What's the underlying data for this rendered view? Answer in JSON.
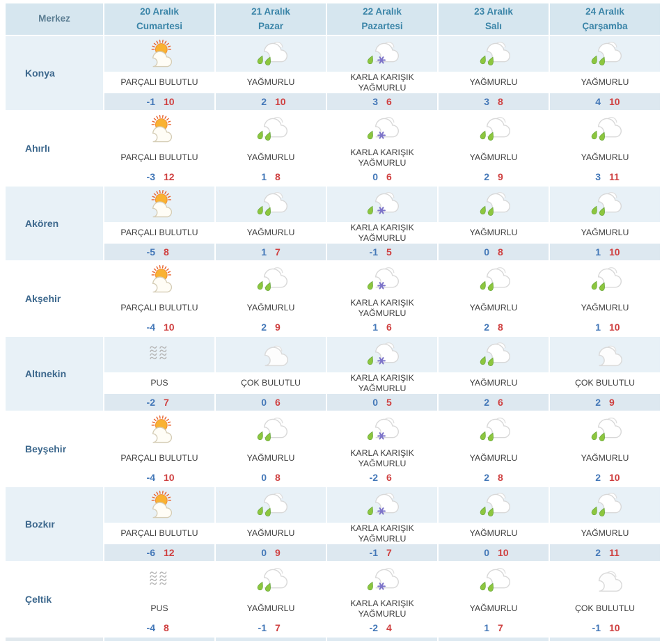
{
  "table": {
    "merkez_label": "Merkez",
    "day_columns": [
      {
        "date": "20 Aralık",
        "day": "Cumartesi"
      },
      {
        "date": "21 Aralık",
        "day": "Pazar"
      },
      {
        "date": "22 Aralık",
        "day": "Pazartesi"
      },
      {
        "date": "23 Aralık",
        "day": "Salı"
      },
      {
        "date": "24 Aralık",
        "day": "Çarşamba"
      }
    ],
    "rows": [
      {
        "name": "Konya",
        "cells": [
          {
            "icon": "partly-cloudy-icon",
            "condition": "PARÇALI BULUTLU",
            "min": "-1",
            "max": "10"
          },
          {
            "icon": "rain-icon",
            "condition": "YAĞMURLU",
            "min": "2",
            "max": "10"
          },
          {
            "icon": "sleet-icon",
            "condition": "KARLA KARIŞIK YAĞMURLU",
            "min": "3",
            "max": "6"
          },
          {
            "icon": "rain-icon",
            "condition": "YAĞMURLU",
            "min": "3",
            "max": "8"
          },
          {
            "icon": "rain-icon",
            "condition": "YAĞMURLU",
            "min": "4",
            "max": "10"
          }
        ]
      },
      {
        "name": "Ahırlı",
        "cells": [
          {
            "icon": "partly-cloudy-icon",
            "condition": "PARÇALI BULUTLU",
            "min": "-3",
            "max": "12"
          },
          {
            "icon": "rain-icon",
            "condition": "YAĞMURLU",
            "min": "1",
            "max": "8"
          },
          {
            "icon": "sleet-icon",
            "condition": "KARLA KARIŞIK YAĞMURLU",
            "min": "0",
            "max": "6"
          },
          {
            "icon": "rain-icon",
            "condition": "YAĞMURLU",
            "min": "2",
            "max": "9"
          },
          {
            "icon": "rain-icon",
            "condition": "YAĞMURLU",
            "min": "3",
            "max": "11"
          }
        ]
      },
      {
        "name": "Akören",
        "cells": [
          {
            "icon": "partly-cloudy-icon",
            "condition": "PARÇALI BULUTLU",
            "min": "-5",
            "max": "8"
          },
          {
            "icon": "rain-icon",
            "condition": "YAĞMURLU",
            "min": "1",
            "max": "7"
          },
          {
            "icon": "sleet-icon",
            "condition": "KARLA KARIŞIK YAĞMURLU",
            "min": "-1",
            "max": "5"
          },
          {
            "icon": "rain-icon",
            "condition": "YAĞMURLU",
            "min": "0",
            "max": "8"
          },
          {
            "icon": "rain-icon",
            "condition": "YAĞMURLU",
            "min": "1",
            "max": "10"
          }
        ]
      },
      {
        "name": "Akşehir",
        "cells": [
          {
            "icon": "partly-cloudy-icon",
            "condition": "PARÇALI BULUTLU",
            "min": "-4",
            "max": "10"
          },
          {
            "icon": "rain-icon",
            "condition": "YAĞMURLU",
            "min": "2",
            "max": "9"
          },
          {
            "icon": "sleet-icon",
            "condition": "KARLA KARIŞIK YAĞMURLU",
            "min": "1",
            "max": "6"
          },
          {
            "icon": "rain-icon",
            "condition": "YAĞMURLU",
            "min": "2",
            "max": "8"
          },
          {
            "icon": "rain-icon",
            "condition": "YAĞMURLU",
            "min": "1",
            "max": "10"
          }
        ]
      },
      {
        "name": "Altınekin",
        "cells": [
          {
            "icon": "mist-icon",
            "condition": "PUS",
            "min": "-2",
            "max": "7"
          },
          {
            "icon": "cloudy-icon",
            "condition": "ÇOK BULUTLU",
            "min": "0",
            "max": "6"
          },
          {
            "icon": "sleet-icon",
            "condition": "KARLA KARIŞIK YAĞMURLU",
            "min": "0",
            "max": "5"
          },
          {
            "icon": "rain-icon",
            "condition": "YAĞMURLU",
            "min": "2",
            "max": "6"
          },
          {
            "icon": "cloudy-icon",
            "condition": "ÇOK BULUTLU",
            "min": "2",
            "max": "9"
          }
        ]
      },
      {
        "name": "Beyşehir",
        "cells": [
          {
            "icon": "partly-cloudy-icon",
            "condition": "PARÇALI BULUTLU",
            "min": "-4",
            "max": "10"
          },
          {
            "icon": "rain-icon",
            "condition": "YAĞMURLU",
            "min": "0",
            "max": "8"
          },
          {
            "icon": "sleet-icon",
            "condition": "KARLA KARIŞIK YAĞMURLU",
            "min": "-2",
            "max": "6"
          },
          {
            "icon": "rain-icon",
            "condition": "YAĞMURLU",
            "min": "2",
            "max": "8"
          },
          {
            "icon": "rain-icon",
            "condition": "YAĞMURLU",
            "min": "2",
            "max": "10"
          }
        ]
      },
      {
        "name": "Bozkır",
        "cells": [
          {
            "icon": "partly-cloudy-icon",
            "condition": "PARÇALI BULUTLU",
            "min": "-6",
            "max": "12"
          },
          {
            "icon": "rain-icon",
            "condition": "YAĞMURLU",
            "min": "0",
            "max": "9"
          },
          {
            "icon": "sleet-icon",
            "condition": "KARLA KARIŞIK YAĞMURLU",
            "min": "-1",
            "max": "7"
          },
          {
            "icon": "rain-icon",
            "condition": "YAĞMURLU",
            "min": "0",
            "max": "10"
          },
          {
            "icon": "rain-icon",
            "condition": "YAĞMURLU",
            "min": "2",
            "max": "11"
          }
        ]
      },
      {
        "name": "Çeltik",
        "cells": [
          {
            "icon": "mist-icon",
            "condition": "PUS",
            "min": "-4",
            "max": "8"
          },
          {
            "icon": "rain-icon",
            "condition": "YAĞMURLU",
            "min": "-1",
            "max": "7"
          },
          {
            "icon": "sleet-icon",
            "condition": "KARLA KARIŞIK YAĞMURLU",
            "min": "-2",
            "max": "4"
          },
          {
            "icon": "rain-icon",
            "condition": "YAĞMURLU",
            "min": "1",
            "max": "7"
          },
          {
            "icon": "cloudy-icon",
            "condition": "ÇOK BULUTLU",
            "min": "-1",
            "max": "10"
          }
        ]
      }
    ]
  },
  "colors": {
    "header_bg": "#d6e6ef",
    "header_day_text": "#3b85a8",
    "merkez_text": "#5d7f94",
    "row_blue_bg": "#e8f1f7",
    "temp_band_bg": "#dde8f0",
    "city_text": "#3d688d",
    "condition_text": "#3e3e3e",
    "min_temp_color": "#4478b8",
    "max_temp_color": "#cf4040"
  }
}
